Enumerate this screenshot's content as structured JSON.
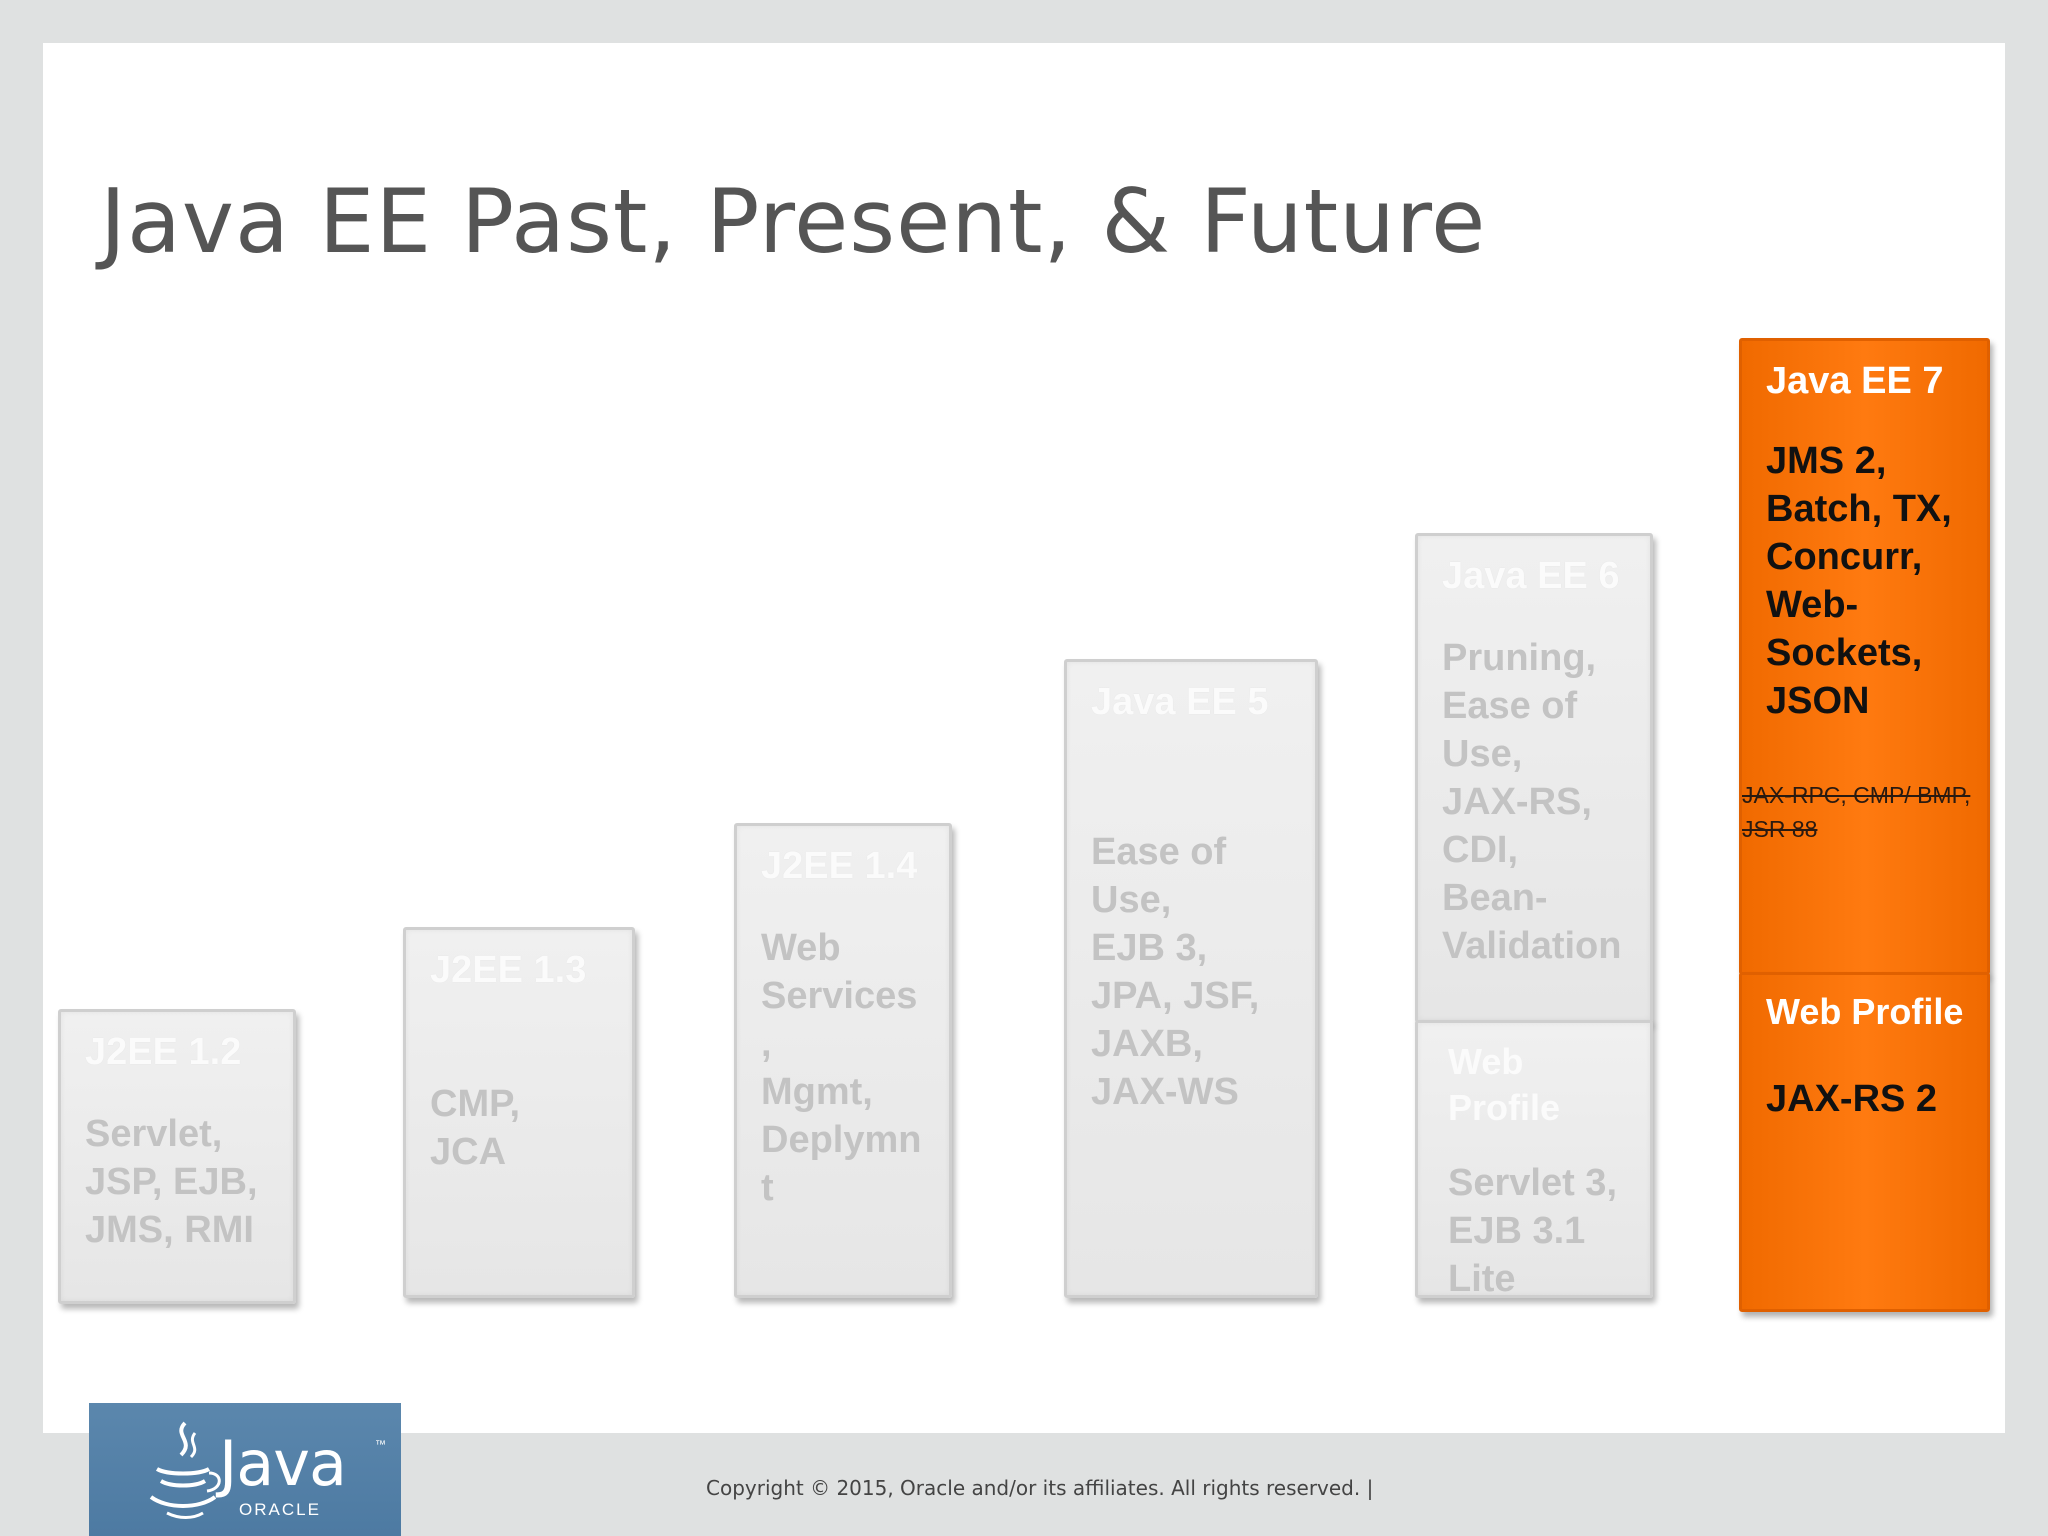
{
  "slide": {
    "title": "Java EE Past, Present, & Future"
  },
  "releases": [
    {
      "name": "J2EE 1.2",
      "features": "Servlet,\nJSP, EJB,\nJMS, RMI"
    },
    {
      "name": "J2EE 1.3",
      "features": "CMP,\nJCA"
    },
    {
      "name": "J2EE 1.4",
      "features": "Web\nServices\n,\nMgmt,\nDeplymn\nt"
    },
    {
      "name": "Java EE 5",
      "features": "Ease of\nUse,\nEJB 3,\nJPA, JSF,\nJAXB,\nJAX-WS"
    },
    {
      "name": "Java EE 6",
      "features": "Pruning,\nEase of\nUse,\nJAX-RS,\nCDI,\nBean-\nValidation",
      "web_profile": {
        "name": "Web\nProfile",
        "features": "Servlet 3,\nEJB 3.1\nLite"
      }
    },
    {
      "name": "Java EE 7",
      "features": "JMS 2,\nBatch, TX,\nConcurr,\nWeb-\nSockets,\nJSON",
      "pruned": "JAX-RPC, CMP/ BMP,\nJSR 88",
      "web_profile": {
        "name": "Web Profile",
        "features": "JAX-RS 2"
      }
    }
  ],
  "colors": {
    "highlight": "#ff7a10",
    "box_grey": "#e8e8e8",
    "logo_blue": "#5b87ad"
  },
  "logo": {
    "brand": "Java",
    "tm": "™",
    "company": "ORACLE",
    "icon": "java-cup-icon"
  },
  "footer": {
    "copyright": "Copyright © 2015, Oracle and/or its affiliates. All rights reserved.  |"
  }
}
